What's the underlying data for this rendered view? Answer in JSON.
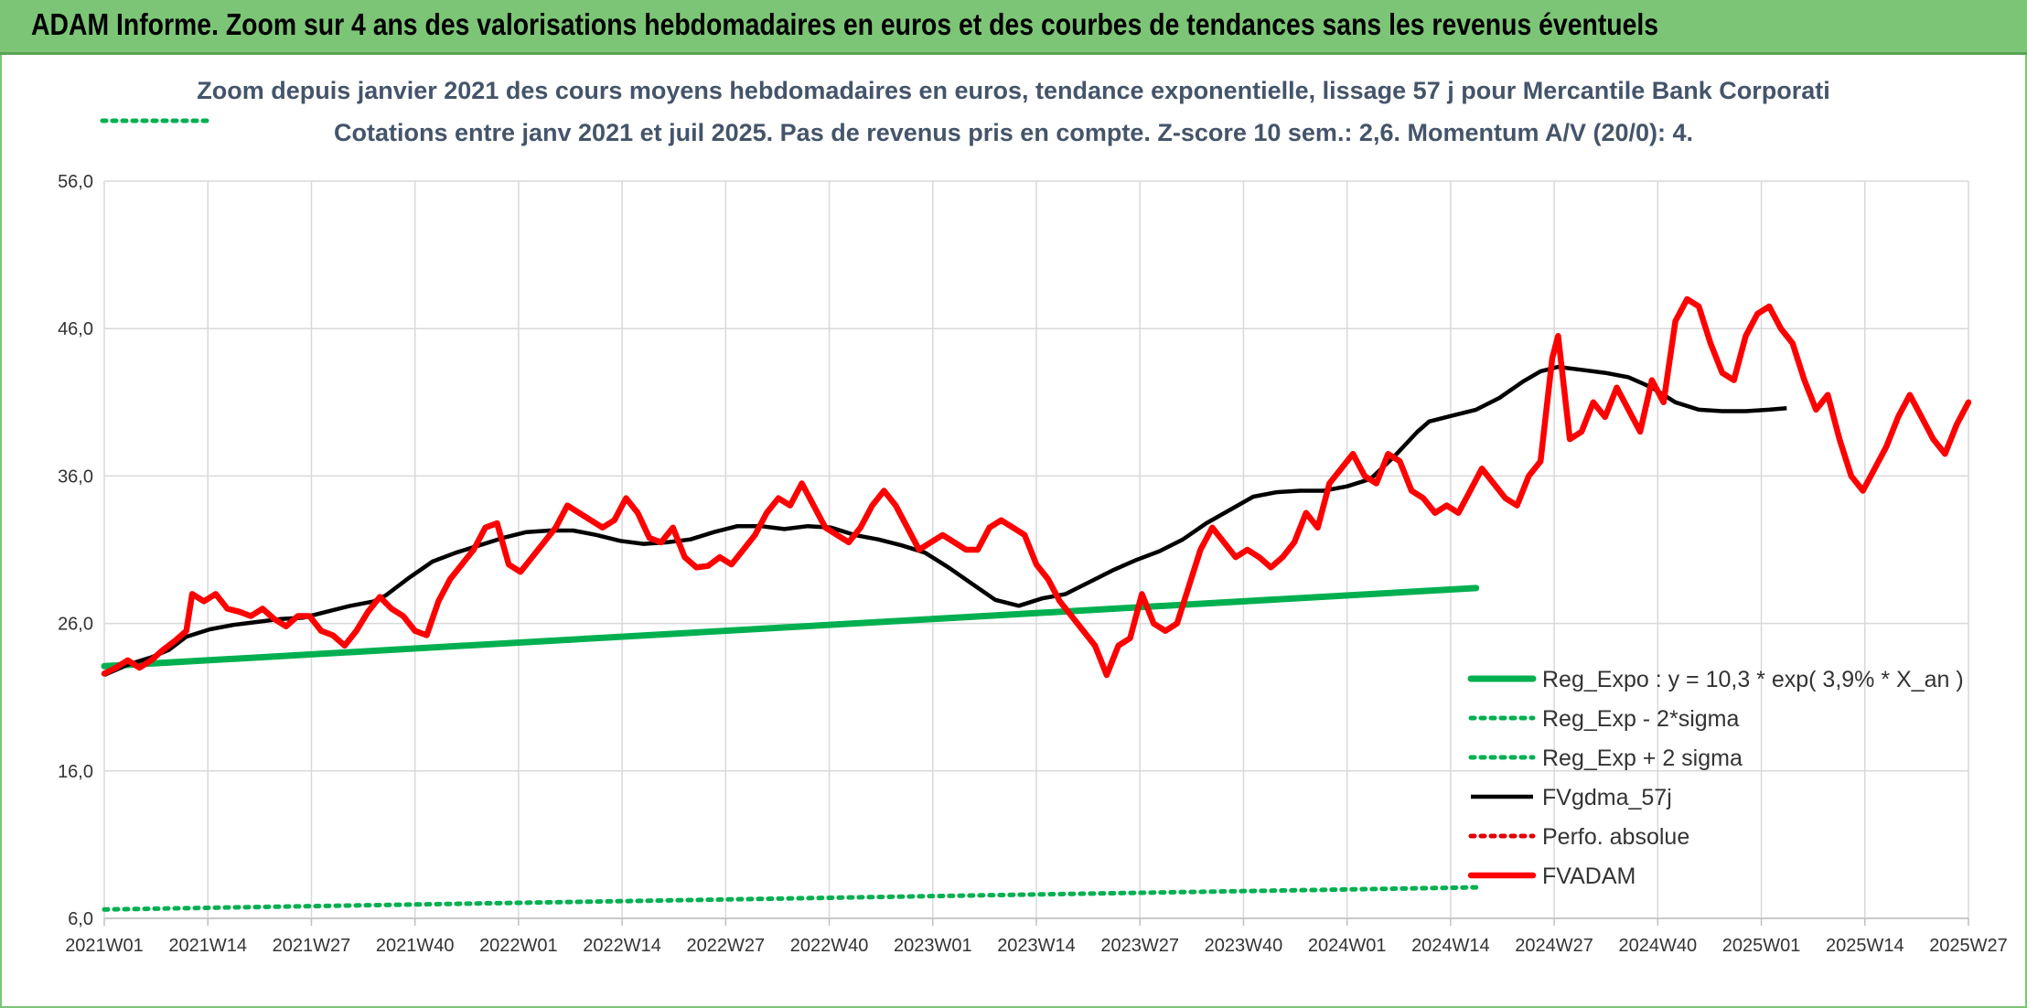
{
  "banner": {
    "title": "ADAM Informe. Zoom sur 4 ans des valorisations hebdomadaires en euros et des courbes de tendances sans les revenus éventuels"
  },
  "chart_data": {
    "type": "line",
    "title": "Zoom depuis janvier 2021 des cours moyens hebdomadaires en euros, tendance exponentielle, lissage 57 j pour Mercantile Bank Corporati",
    "subtitle": "Cotations entre janv 2021 et juil 2025. Pas de revenus pris en compte. Z-score 10 sem.: 2,6. Momentum A/V (20/0): 4.",
    "xlabel": "",
    "ylabel": "",
    "x_ticks": [
      "2021W01",
      "2021W14",
      "2021W27",
      "2021W40",
      "2022W01",
      "2022W14",
      "2022W27",
      "2022W40",
      "2023W01",
      "2023W14",
      "2023W27",
      "2023W40",
      "2024W01",
      "2024W14",
      "2024W27",
      "2024W40",
      "2025W01",
      "2025W14",
      "2025W27"
    ],
    "y_ticks": [
      "6,0",
      "16,0",
      "26,0",
      "36,0",
      "46,0",
      "56,0"
    ],
    "ylim": [
      6,
      56
    ],
    "week_range": [
      0,
      234
    ],
    "grid": true,
    "legend_position": "lower-right",
    "series": [
      {
        "name": "Reg_Expo : y = 10,3 * exp( 3,9% *  X_an )",
        "color": "#00b050",
        "style": "solid",
        "points": [
          [
            0,
            23.1
          ],
          [
            234,
            28.4
          ]
        ]
      },
      {
        "name": "Reg_Exp - 2*sigma",
        "color": "#00b050",
        "style": "dotted",
        "points": [
          [
            0,
            6.6
          ],
          [
            234,
            8.1
          ]
        ]
      },
      {
        "name": "Reg_Exp + 2 sigma",
        "color": "#00b050",
        "style": "dotted",
        "points": [
          [
            0,
            60.5
          ],
          [
            18,
            60.5
          ]
        ],
        "points_2": [
          [
            209,
            60.5
          ],
          [
            234,
            60.5
          ]
        ]
      },
      {
        "name": "FVgdma_57j",
        "color": "#000000",
        "style": "solid",
        "points": [
          [
            0,
            22.5
          ],
          [
            4,
            23.2
          ],
          [
            8,
            23.7
          ],
          [
            11,
            24.2
          ],
          [
            14,
            25.1
          ],
          [
            18,
            25.6
          ],
          [
            22,
            25.9
          ],
          [
            26,
            26.1
          ],
          [
            30,
            26.3
          ],
          [
            34,
            26.4
          ],
          [
            38,
            26.8
          ],
          [
            42,
            27.2
          ],
          [
            46,
            27.5
          ],
          [
            48,
            27.9
          ],
          [
            52,
            29.1
          ],
          [
            56,
            30.2
          ],
          [
            60,
            30.8
          ],
          [
            64,
            31.3
          ],
          [
            68,
            31.8
          ],
          [
            72,
            32.2
          ],
          [
            76,
            32.3
          ],
          [
            80,
            32.3
          ],
          [
            84,
            32.0
          ],
          [
            88,
            31.6
          ],
          [
            92,
            31.4
          ],
          [
            96,
            31.5
          ],
          [
            100,
            31.7
          ],
          [
            104,
            32.2
          ],
          [
            108,
            32.6
          ],
          [
            112,
            32.6
          ],
          [
            116,
            32.4
          ],
          [
            120,
            32.6
          ],
          [
            124,
            32.5
          ],
          [
            128,
            32.0
          ],
          [
            132,
            31.7
          ],
          [
            136,
            31.3
          ],
          [
            140,
            30.8
          ],
          [
            144,
            29.8
          ],
          [
            148,
            28.7
          ],
          [
            152,
            27.6
          ],
          [
            156,
            27.2
          ],
          [
            160,
            27.7
          ],
          [
            164,
            28.0
          ],
          [
            168,
            28.8
          ],
          [
            172,
            29.6
          ],
          [
            176,
            30.3
          ],
          [
            180,
            30.9
          ],
          [
            184,
            31.7
          ],
          [
            188,
            32.8
          ],
          [
            192,
            33.7
          ],
          [
            196,
            34.6
          ],
          [
            200,
            34.9
          ],
          [
            204,
            35.0
          ],
          [
            208,
            35.0
          ],
          [
            212,
            35.3
          ],
          [
            216,
            35.8
          ],
          [
            220,
            37.3
          ],
          [
            224,
            39.0
          ],
          [
            226,
            39.7
          ],
          [
            230,
            40.1
          ],
          [
            234,
            40.5
          ],
          [
            238,
            41.3
          ],
          [
            242,
            42.4
          ],
          [
            245,
            43.1
          ],
          [
            248,
            43.4
          ],
          [
            252,
            43.2
          ],
          [
            256,
            43.0
          ],
          [
            260,
            42.7
          ],
          [
            264,
            42.0
          ],
          [
            268,
            41.0
          ],
          [
            272,
            40.5
          ],
          [
            276,
            40.4
          ],
          [
            280,
            40.4
          ],
          [
            284,
            40.5
          ],
          [
            287,
            40.6
          ]
        ]
      },
      {
        "name": "Perfo. absolue",
        "color": "#e00000",
        "style": "dotted",
        "points": []
      },
      {
        "name": "FVADAM",
        "color": "#ff0000",
        "style": "solid",
        "points": [
          [
            0,
            22.6
          ],
          [
            2,
            23.0
          ],
          [
            4,
            23.5
          ],
          [
            6,
            23.0
          ],
          [
            8,
            23.5
          ],
          [
            10,
            24.2
          ],
          [
            12,
            24.8
          ],
          [
            14,
            25.5
          ],
          [
            15,
            28.0
          ],
          [
            17,
            27.5
          ],
          [
            19,
            28.0
          ],
          [
            21,
            27.0
          ],
          [
            23,
            26.8
          ],
          [
            25,
            26.5
          ],
          [
            27,
            27.0
          ],
          [
            29,
            26.3
          ],
          [
            31,
            25.8
          ],
          [
            33,
            26.5
          ],
          [
            35,
            26.5
          ],
          [
            37,
            25.5
          ],
          [
            39,
            25.2
          ],
          [
            41,
            24.5
          ],
          [
            43,
            25.5
          ],
          [
            45,
            26.8
          ],
          [
            47,
            27.8
          ],
          [
            49,
            27.0
          ],
          [
            51,
            26.5
          ],
          [
            53,
            25.5
          ],
          [
            55,
            25.2
          ],
          [
            57,
            27.5
          ],
          [
            59,
            29.0
          ],
          [
            61,
            30.0
          ],
          [
            63,
            31.0
          ],
          [
            65,
            32.5
          ],
          [
            67,
            32.8
          ],
          [
            69,
            30.0
          ],
          [
            71,
            29.5
          ],
          [
            73,
            30.5
          ],
          [
            75,
            31.5
          ],
          [
            77,
            32.5
          ],
          [
            79,
            34.0
          ],
          [
            81,
            33.5
          ],
          [
            83,
            33.0
          ],
          [
            85,
            32.5
          ],
          [
            87,
            33.0
          ],
          [
            89,
            34.5
          ],
          [
            91,
            33.5
          ],
          [
            93,
            31.8
          ],
          [
            95,
            31.5
          ],
          [
            97,
            32.5
          ],
          [
            99,
            30.5
          ],
          [
            101,
            29.8
          ],
          [
            103,
            29.9
          ],
          [
            105,
            30.5
          ],
          [
            107,
            30.0
          ],
          [
            109,
            31.0
          ],
          [
            111,
            32.0
          ],
          [
            113,
            33.5
          ],
          [
            115,
            34.5
          ],
          [
            117,
            34.0
          ],
          [
            119,
            35.5
          ],
          [
            121,
            34.0
          ],
          [
            123,
            32.5
          ],
          [
            125,
            32.0
          ],
          [
            127,
            31.5
          ],
          [
            129,
            32.5
          ],
          [
            131,
            34.0
          ],
          [
            133,
            35.0
          ],
          [
            135,
            34.0
          ],
          [
            137,
            32.5
          ],
          [
            139,
            31.0
          ],
          [
            141,
            31.5
          ],
          [
            143,
            32.0
          ],
          [
            145,
            31.5
          ],
          [
            147,
            31.0
          ],
          [
            149,
            31.0
          ],
          [
            151,
            32.5
          ],
          [
            153,
            33.0
          ],
          [
            155,
            32.5
          ],
          [
            157,
            32.0
          ],
          [
            159,
            30.0
          ],
          [
            161,
            29.0
          ],
          [
            163,
            27.5
          ],
          [
            165,
            26.5
          ],
          [
            167,
            25.5
          ],
          [
            169,
            24.5
          ],
          [
            171,
            22.5
          ],
          [
            173,
            24.5
          ],
          [
            175,
            25.0
          ],
          [
            177,
            28.0
          ],
          [
            179,
            26.0
          ],
          [
            181,
            25.5
          ],
          [
            183,
            26.0
          ],
          [
            185,
            28.5
          ],
          [
            187,
            31.0
          ],
          [
            189,
            32.5
          ],
          [
            191,
            31.5
          ],
          [
            193,
            30.5
          ],
          [
            195,
            31.0
          ],
          [
            197,
            30.5
          ],
          [
            199,
            29.8
          ],
          [
            201,
            30.5
          ],
          [
            203,
            31.5
          ],
          [
            205,
            33.5
          ],
          [
            207,
            32.5
          ],
          [
            209,
            35.5
          ],
          [
            211,
            36.5
          ],
          [
            213,
            37.5
          ],
          [
            215,
            36.0
          ],
          [
            217,
            35.5
          ],
          [
            219,
            37.5
          ],
          [
            221,
            37.0
          ],
          [
            223,
            35.0
          ],
          [
            225,
            34.5
          ],
          [
            227,
            33.5
          ],
          [
            229,
            34.0
          ],
          [
            231,
            33.5
          ],
          [
            233,
            35.0
          ],
          [
            235,
            36.5
          ],
          [
            237,
            35.5
          ],
          [
            239,
            34.5
          ],
          [
            241,
            34.0
          ],
          [
            243,
            36.0
          ],
          [
            245,
            37.0
          ],
          [
            247,
            44.0
          ],
          [
            248,
            45.5
          ],
          [
            249,
            42.0
          ],
          [
            250,
            38.5
          ],
          [
            252,
            39.0
          ],
          [
            254,
            41.0
          ],
          [
            256,
            40.0
          ],
          [
            258,
            42.0
          ],
          [
            260,
            40.5
          ],
          [
            262,
            39.0
          ],
          [
            264,
            42.5
          ],
          [
            266,
            41.0
          ],
          [
            268,
            46.5
          ],
          [
            270,
            48.0
          ],
          [
            272,
            47.5
          ],
          [
            274,
            45.0
          ],
          [
            276,
            43.0
          ],
          [
            278,
            42.5
          ],
          [
            280,
            45.5
          ],
          [
            282,
            47.0
          ],
          [
            284,
            47.5
          ],
          [
            286,
            46.0
          ],
          [
            288,
            45.0
          ],
          [
            290,
            42.5
          ],
          [
            292,
            40.5
          ],
          [
            294,
            41.5
          ],
          [
            296,
            38.5
          ],
          [
            298,
            36.0
          ],
          [
            300,
            35.0
          ],
          [
            302,
            36.5
          ],
          [
            304,
            38.0
          ],
          [
            306,
            40.0
          ],
          [
            308,
            41.5
          ],
          [
            310,
            40.0
          ],
          [
            312,
            38.5
          ],
          [
            314,
            37.5
          ],
          [
            316,
            39.5
          ],
          [
            318,
            41.0
          ]
        ]
      }
    ]
  }
}
